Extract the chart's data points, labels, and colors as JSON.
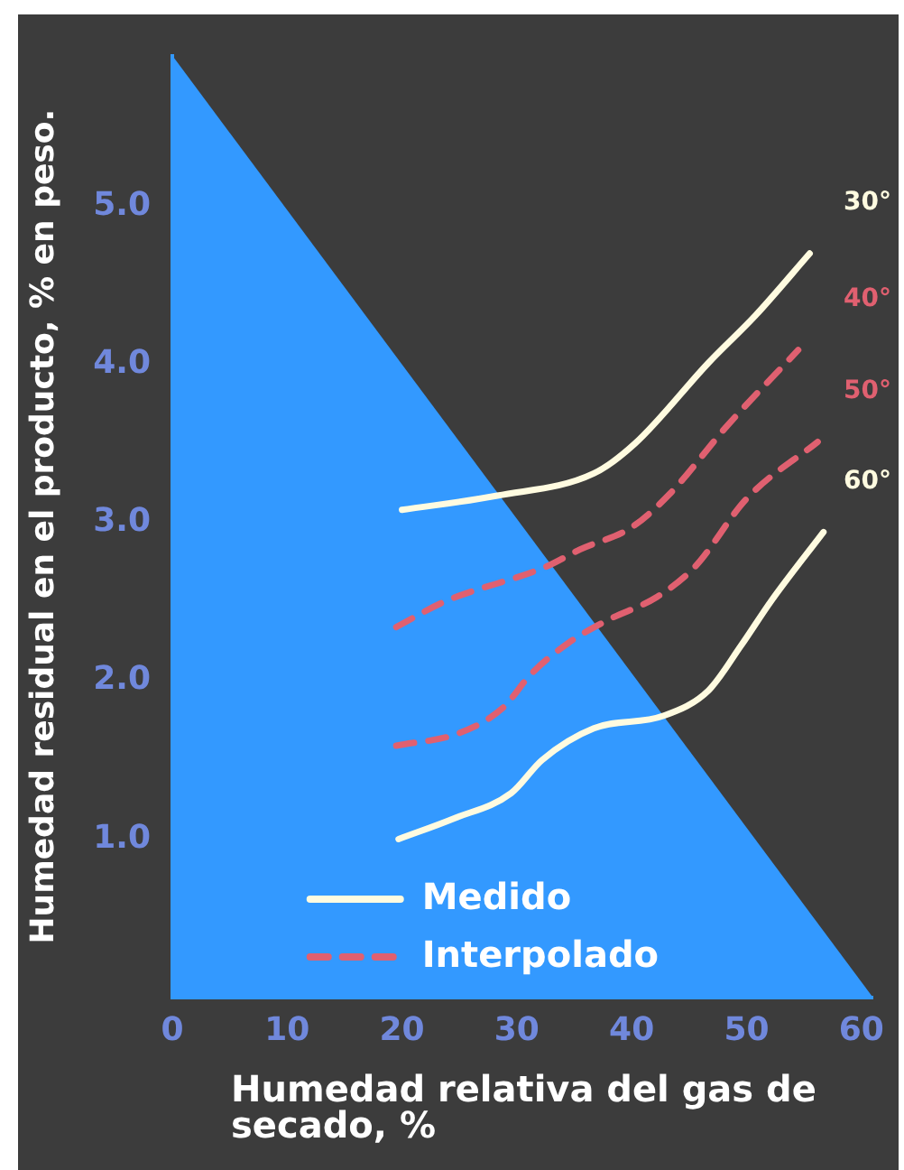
{
  "chart_data": {
    "type": "line",
    "xlabel": "Humedad relativa del gas de secado, %",
    "ylabel": "Humedad residual en el producto, % en peso.",
    "xlim": [
      0,
      61
    ],
    "xticks": [
      0,
      10,
      20,
      30,
      40,
      50,
      60
    ],
    "ylim": [
      0,
      5.95
    ],
    "yticks": [
      {
        "value": 1,
        "label": "1.0"
      },
      {
        "value": 2,
        "label": "2.0"
      },
      {
        "value": 3,
        "label": "3.0"
      },
      {
        "value": 4,
        "label": "4.0"
      },
      {
        "value": 5,
        "label": "5.0"
      }
    ],
    "grid": false,
    "marker": "none",
    "annotations": [
      "Medido",
      "Interpolado"
    ],
    "series": [
      {
        "type": "area",
        "color": "#3399ff",
        "x": [
          0,
          61
        ],
        "values": [
          5.95,
          0
        ]
      },
      {
        "name": "30°",
        "color": "#fffbe0",
        "line_style": "solid",
        "x": [
          20,
          28.3,
          36.7,
          40.3,
          46.7,
          50.8,
          55.5
        ],
        "values": [
          3.08,
          3.17,
          3.31,
          3.5,
          4.01,
          4.31,
          4.7
        ]
      },
      {
        "name": "40°",
        "color": "#e06070",
        "line_style": "dashed",
        "x": [
          19.5,
          23.7,
          32.5,
          35.5,
          40,
          43.3,
          48.3,
          54.5
        ],
        "values": [
          2.34,
          2.5,
          2.72,
          2.83,
          2.97,
          3.18,
          3.61,
          4.09
        ]
      },
      {
        "name": "50°",
        "color": "#e06070",
        "line_style": "dashed",
        "x": [
          19.5,
          25,
          28.8,
          31.2,
          34.5,
          37.8,
          42.2,
          45.5,
          50,
          56.2
        ],
        "values": [
          1.59,
          1.67,
          1.83,
          2.04,
          2.24,
          2.38,
          2.53,
          2.72,
          3.15,
          3.51
        ]
      },
      {
        "name": "60°",
        "color": "#fffbe0",
        "line_style": "solid",
        "x": [
          19.7,
          24.5,
          29.5,
          32.2,
          36.7,
          42.8,
          46.7,
          49.5,
          52.2,
          56.7
        ],
        "values": [
          1.0,
          1.13,
          1.29,
          1.5,
          1.7,
          1.78,
          1.94,
          2.22,
          2.51,
          2.94
        ]
      }
    ]
  }
}
